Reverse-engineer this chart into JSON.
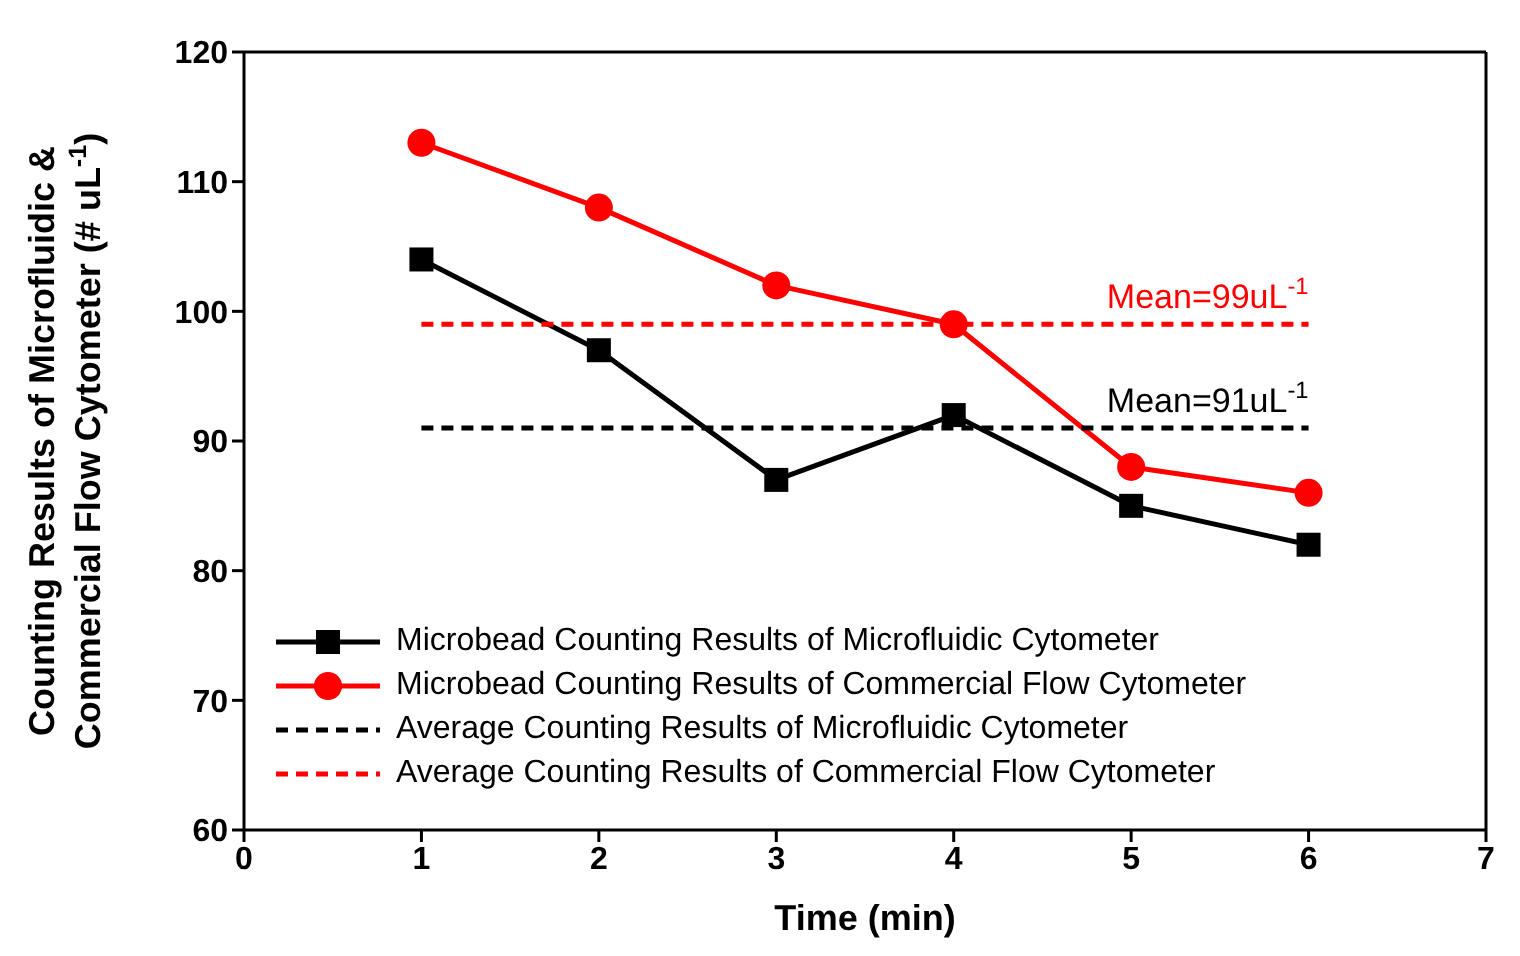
{
  "chart_data": {
    "type": "line",
    "xlabel": "Time (min)",
    "ylabel": "Counting Results of Microfluidic &\nCommercial Flow Cytometer (# uL$^{-1}$)",
    "x": [
      1,
      2,
      3,
      4,
      5,
      6
    ],
    "series": [
      {
        "name": "Microbead Counting Results of Microfluidic Cytometer",
        "color": "#000000",
        "values": [
          104,
          97,
          87,
          92,
          85,
          82
        ],
        "marker": "square",
        "line_style": "solid"
      },
      {
        "name": "Microbead Counting Results of Commercial Flow Cytometer",
        "color": "#ff0000",
        "values": [
          113,
          108,
          102,
          99,
          88,
          86
        ],
        "marker": "circle",
        "line_style": "solid"
      },
      {
        "name": "Average Counting Results of Microfluidic Cytometer",
        "color": "#000000",
        "values": [
          91,
          91,
          91,
          91,
          91,
          91
        ],
        "marker": "none",
        "line_style": "dashed"
      },
      {
        "name": "Average Counting Results of Commercial Flow Cytometer",
        "color": "#ff0000",
        "values": [
          99,
          99,
          99,
          99,
          99,
          99
        ],
        "marker": "none",
        "line_style": "dashed"
      }
    ],
    "annotations": [
      {
        "text": "Mean=99uL$^{-1}$",
        "x": 6,
        "y": 99
      },
      {
        "text": "Mean=91uL$^{-1}$",
        "x": 6,
        "y": 91
      }
    ],
    "xlim": [
      0,
      7
    ],
    "xticks": [
      0,
      1,
      2,
      3,
      4,
      5,
      6,
      7
    ],
    "ylim": [
      60,
      120
    ],
    "yticks": [
      60,
      70,
      80,
      90,
      100,
      110,
      120
    ],
    "grid": false,
    "legend": "bottom left"
  }
}
